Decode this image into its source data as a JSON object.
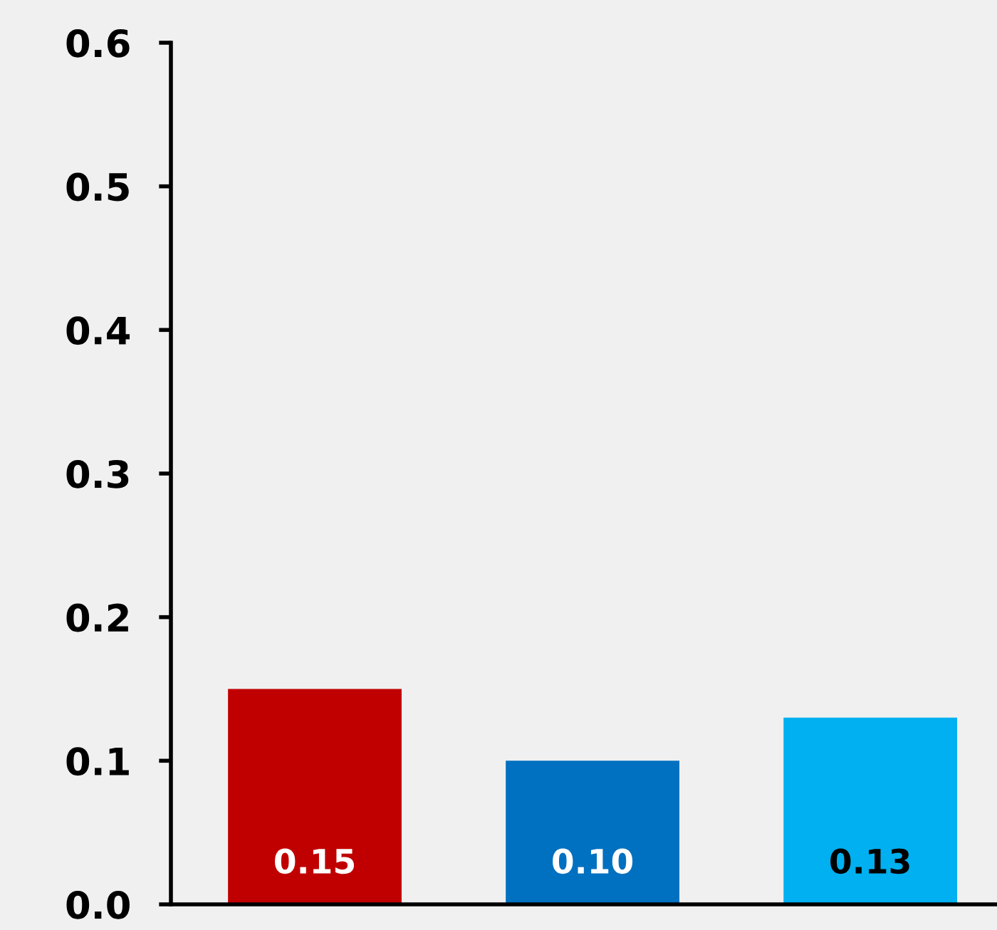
{
  "chart_data": {
    "type": "bar",
    "categories": [
      null,
      null,
      null
    ],
    "values": [
      0.15,
      0.1,
      0.13
    ],
    "colors": [
      "#c00000",
      "#0070c0",
      "#00b0f0"
    ],
    "value_labels": [
      "0.15",
      "0.10",
      "0.13"
    ],
    "ylim": [
      0,
      0.6
    ],
    "yticks": [
      {
        "value": 0,
        "label": "0.0"
      },
      {
        "value": 0.1,
        "label": "0.1"
      },
      {
        "value": 0.2,
        "label": "0.2"
      },
      {
        "value": 0.3,
        "label": "0.3"
      },
      {
        "value": 0.4,
        "label": "0.4"
      },
      {
        "value": 0.5,
        "label": "0.5"
      },
      {
        "value": 0.6,
        "label": "0.6"
      }
    ],
    "grid": false,
    "legend": false
  }
}
